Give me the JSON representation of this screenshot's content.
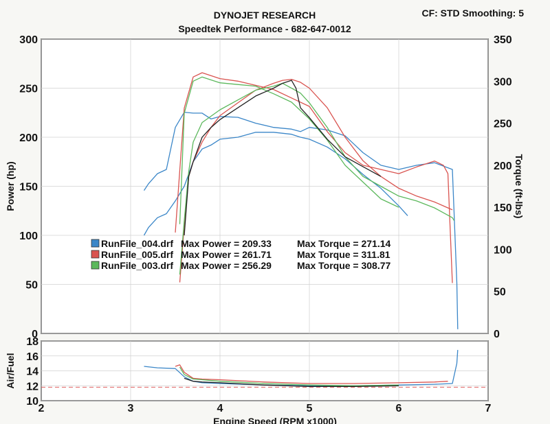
{
  "header": {
    "title": "DYNOJET RESEARCH",
    "subtitle": "Speedtek Performance - 682-647-0012",
    "corner": "CF: STD  Smoothing: 5"
  },
  "colors": {
    "blue": "#3a86c8",
    "red": "#d9534f",
    "green": "#5cb85c",
    "dark": "#222222",
    "grid": "#d0d0d0",
    "afr_ref": "#e06060"
  },
  "chart_data": [
    {
      "type": "line",
      "xlabel": "Engine Speed (RPM x1000)",
      "ylabel": "Power (hp)",
      "y2label": "Torque (ft-lbs)",
      "xlim": [
        2,
        7
      ],
      "ylim": [
        0,
        300
      ],
      "y2lim": [
        0,
        350
      ],
      "xticks": [
        "2",
        "3",
        "4",
        "5",
        "6",
        "7"
      ],
      "yticks": [
        "0",
        "50",
        "100",
        "150",
        "200",
        "250",
        "300"
      ],
      "y2ticks": [
        "0",
        "50",
        "100",
        "150",
        "200",
        "250",
        "300",
        "350"
      ],
      "grid": true,
      "legend_position": "lower-left",
      "legend": [
        {
          "name": "RunFile_004.drf",
          "color": "blue",
          "max_power_label": "Max Power = 209.33",
          "max_torque_label": "Max Torque = 271.14"
        },
        {
          "name": "RunFile_005.drf",
          "color": "red",
          "max_power_label": "Max Power = 261.71",
          "max_torque_label": "Max Torque = 311.81"
        },
        {
          "name": "RunFile_003.drf",
          "color": "green",
          "max_power_label": "Max Power = 256.29",
          "max_torque_label": "Max Torque = 308.77"
        }
      ],
      "series": [
        {
          "name": "RunFile_004.drf",
          "quantity": "power",
          "axis": "left",
          "color": "blue",
          "x": [
            3.15,
            3.2,
            3.3,
            3.4,
            3.5,
            3.6,
            3.7,
            3.8,
            3.9,
            4.0,
            4.2,
            4.4,
            4.6,
            4.8,
            4.9,
            5.0,
            5.2,
            5.4,
            5.5,
            5.6,
            5.8,
            6.0,
            6.1
          ],
          "y": [
            100,
            108,
            118,
            122,
            135,
            150,
            175,
            188,
            192,
            198,
            200,
            205,
            205,
            203,
            200,
            198,
            190,
            178,
            170,
            162,
            148,
            130,
            120
          ]
        },
        {
          "name": "RunFile_004.drf",
          "quantity": "torque",
          "axis": "right",
          "color": "blue",
          "x": [
            3.15,
            3.2,
            3.3,
            3.4,
            3.5,
            3.6,
            3.7,
            3.8,
            3.9,
            4.0,
            4.2,
            4.4,
            4.6,
            4.8,
            4.9,
            5.0,
            5.2,
            5.4,
            5.5,
            5.6,
            5.8,
            6.0,
            6.2,
            6.4,
            6.6,
            6.65,
            6.66
          ],
          "y": [
            170,
            178,
            190,
            195,
            245,
            263,
            262,
            262,
            255,
            258,
            257,
            250,
            245,
            243,
            240,
            245,
            242,
            235,
            225,
            215,
            200,
            195,
            200,
            203,
            195,
            60,
            5
          ]
        },
        {
          "name": "RunFile_005.drf",
          "quantity": "power",
          "axis": "left",
          "color": "red",
          "x": [
            3.55,
            3.6,
            3.65,
            3.7,
            3.8,
            3.9,
            4.0,
            4.2,
            4.4,
            4.6,
            4.7,
            4.8,
            4.9,
            5.0,
            5.2,
            5.4,
            5.6,
            5.8,
            6.0,
            6.2,
            6.4,
            6.5,
            6.55,
            6.6
          ],
          "y": [
            52,
            110,
            160,
            175,
            195,
            210,
            222,
            235,
            248,
            255,
            258,
            259,
            256,
            250,
            230,
            200,
            176,
            160,
            148,
            140,
            134,
            130,
            128,
            126
          ]
        },
        {
          "name": "RunFile_005.drf",
          "quantity": "torque",
          "axis": "right",
          "color": "red",
          "x": [
            3.5,
            3.6,
            3.7,
            3.8,
            4.0,
            4.2,
            4.4,
            4.6,
            4.8,
            5.0,
            5.2,
            5.4,
            5.6,
            5.8,
            6.0,
            6.2,
            6.4,
            6.5,
            6.55,
            6.6
          ],
          "y": [
            120,
            268,
            305,
            310,
            303,
            300,
            295,
            290,
            280,
            270,
            240,
            215,
            200,
            195,
            190,
            198,
            205,
            200,
            190,
            60
          ]
        },
        {
          "name": "RunFile_003.drf",
          "quantity": "power",
          "axis": "left",
          "color": "green",
          "x": [
            3.55,
            3.6,
            3.65,
            3.7,
            3.8,
            4.0,
            4.2,
            4.4,
            4.6,
            4.7,
            4.8,
            4.9,
            5.0,
            5.2,
            5.4,
            5.6,
            5.8,
            6.0,
            6.2,
            6.4,
            6.6,
            6.62
          ],
          "y": [
            60,
            115,
            165,
            195,
            215,
            228,
            238,
            248,
            252,
            255,
            250,
            245,
            235,
            210,
            180,
            160,
            150,
            140,
            135,
            128,
            118,
            115
          ]
        },
        {
          "name": "RunFile_003.drf",
          "quantity": "torque",
          "axis": "right",
          "color": "green",
          "x": [
            3.55,
            3.6,
            3.7,
            3.8,
            4.0,
            4.2,
            4.4,
            4.6,
            4.8,
            5.0,
            5.2,
            5.4,
            5.6,
            5.8,
            6.0
          ],
          "y": [
            130,
            262,
            300,
            305,
            298,
            296,
            294,
            285,
            275,
            255,
            230,
            200,
            180,
            160,
            150
          ]
        },
        {
          "name": "",
          "quantity": "power",
          "axis": "left",
          "color": "dark",
          "x": [
            3.6,
            3.65,
            3.7,
            3.8,
            3.9,
            4.0,
            4.2,
            4.4,
            4.6,
            4.7,
            4.8,
            4.85,
            4.9,
            5.0,
            5.2,
            5.4,
            5.6,
            5.8
          ],
          "y": [
            100,
            160,
            175,
            200,
            210,
            218,
            230,
            242,
            250,
            255,
            258,
            250,
            230,
            220,
            198,
            180,
            170,
            160
          ]
        }
      ]
    },
    {
      "type": "line",
      "ylabel": "Air/Fuel",
      "xlabel": "Engine Speed (RPM x1000)",
      "xlim": [
        2,
        7
      ],
      "ylim": [
        10,
        18
      ],
      "xticks": [
        "2",
        "3",
        "4",
        "5",
        "6",
        "7"
      ],
      "yticks": [
        "10",
        "12",
        "14",
        "16",
        "18"
      ],
      "grid": true,
      "reference_line_afr": 11.8,
      "series": [
        {
          "name": "RunFile_004.drf",
          "color": "blue",
          "x": [
            3.15,
            3.3,
            3.5,
            3.6,
            3.7,
            3.8,
            4.0,
            4.5,
            5.0,
            5.5,
            6.0,
            6.4,
            6.6,
            6.65,
            6.66
          ],
          "y": [
            14.6,
            14.4,
            14.3,
            13.2,
            12.6,
            12.4,
            12.3,
            12.1,
            12.0,
            12.0,
            12.1,
            12.2,
            12.3,
            15.0,
            16.8
          ]
        },
        {
          "name": "RunFile_005.drf",
          "color": "red",
          "x": [
            3.5,
            3.55,
            3.6,
            3.7,
            3.8,
            4.0,
            4.5,
            5.0,
            5.5,
            6.0,
            6.4,
            6.55
          ],
          "y": [
            14.6,
            14.8,
            13.8,
            13.0,
            12.9,
            12.8,
            12.5,
            12.3,
            12.3,
            12.4,
            12.5,
            12.6
          ]
        },
        {
          "name": "RunFile_003.drf",
          "color": "green",
          "x": [
            3.55,
            3.6,
            3.7,
            3.8,
            4.0,
            4.5,
            5.0,
            5.5,
            6.0
          ],
          "y": [
            14.5,
            13.5,
            12.9,
            12.8,
            12.6,
            12.3,
            12.1,
            12.0,
            12.1
          ]
        },
        {
          "name": "",
          "color": "dark",
          "x": [
            3.6,
            3.7,
            3.8,
            4.0,
            4.5,
            5.0,
            5.5,
            6.0
          ],
          "y": [
            13.0,
            12.6,
            12.5,
            12.4,
            12.1,
            11.9,
            11.9,
            12.0
          ]
        }
      ]
    }
  ]
}
